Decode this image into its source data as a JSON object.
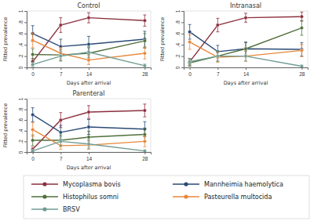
{
  "chart_data": [
    {
      "type": "line",
      "title": "Control",
      "x_label": "Days after arrival",
      "y_label": "Fitted prevalence",
      "x": [
        0,
        7,
        14,
        28
      ],
      "xlim": [
        -1.5,
        29.5
      ],
      "xticks": [
        0,
        7,
        14,
        28
      ],
      "ylim": [
        0,
        1
      ],
      "yticks": [
        0,
        {
          "value": 0.2,
          "label": ".2"
        },
        {
          "value": 0.4,
          "label": ".4"
        },
        {
          "value": 0.6,
          "label": ".6"
        },
        {
          "value": 0.8,
          "label": ".8"
        },
        1
      ],
      "legend": "bottom",
      "series": [
        {
          "name": "Mycoplasma bovis",
          "color": "#8b2f3c",
          "marker": "circle",
          "values": [
            0.1,
            0.75,
            0.88,
            0.83
          ],
          "errors": [
            0.06,
            0.13,
            0.09,
            0.1
          ]
        },
        {
          "name": "Mannheimia haemolytica",
          "color": "#2a4a75",
          "marker": "circle",
          "values": [
            0.6,
            0.37,
            0.41,
            0.5
          ],
          "errors": [
            0.14,
            0.13,
            0.14,
            0.14
          ]
        },
        {
          "name": "Histophilus somni",
          "color": "#50703c",
          "marker": "circle",
          "values": [
            0.23,
            0.22,
            0.25,
            0.47
          ],
          "errors": [
            0.1,
            0.1,
            0.1,
            0.13
          ]
        },
        {
          "name": "Pasteurella multocida",
          "color": "#e8873a",
          "marker": "circle",
          "values": [
            0.48,
            0.25,
            0.13,
            0.25
          ],
          "errors": [
            0.13,
            0.1,
            0.08,
            0.1
          ]
        },
        {
          "name": "BRSV",
          "color": "#6f9c92",
          "marker": "circle",
          "values": [
            0.05,
            0.2,
            0.27,
            0.03
          ],
          "errors": [
            0.04,
            0.09,
            0.1,
            0.03
          ]
        }
      ]
    },
    {
      "type": "line",
      "title": "Intranasal",
      "x_label": "Days after arrival",
      "y_label": "Fitted prevalence",
      "x": [
        0,
        7,
        14,
        28
      ],
      "xlim": [
        -1.5,
        29.5
      ],
      "xticks": [
        0,
        7,
        14,
        28
      ],
      "ylim": [
        0,
        1
      ],
      "yticks": [
        0,
        {
          "value": 0.2,
          "label": ".2"
        },
        {
          "value": 0.4,
          "label": ".4"
        },
        {
          "value": 0.6,
          "label": ".6"
        },
        {
          "value": 0.8,
          "label": ".8"
        },
        1
      ],
      "legend": "bottom",
      "series": [
        {
          "name": "Mycoplasma bovis",
          "color": "#8b2f3c",
          "marker": "circle",
          "values": [
            0.1,
            0.75,
            0.88,
            0.9
          ],
          "errors": [
            0.06,
            0.12,
            0.08,
            0.08
          ]
        },
        {
          "name": "Mannheimia haemolytica",
          "color": "#2a4a75",
          "marker": "circle",
          "values": [
            0.63,
            0.28,
            0.33,
            0.32
          ],
          "errors": [
            0.13,
            0.11,
            0.12,
            0.12
          ]
        },
        {
          "name": "Histophilus somni",
          "color": "#50703c",
          "marker": "circle",
          "values": [
            0.08,
            0.2,
            0.33,
            0.7
          ],
          "errors": [
            0.06,
            0.09,
            0.11,
            0.13
          ]
        },
        {
          "name": "Pasteurella multocida",
          "color": "#e8873a",
          "marker": "circle",
          "values": [
            0.45,
            0.18,
            0.2,
            0.3
          ],
          "errors": [
            0.13,
            0.09,
            0.09,
            0.11
          ]
        },
        {
          "name": "BRSV",
          "color": "#6f9c92",
          "marker": "circle",
          "values": [
            0.1,
            0.2,
            0.2,
            0.02
          ],
          "errors": [
            0.06,
            0.09,
            0.09,
            0.02
          ]
        }
      ]
    },
    {
      "type": "line",
      "title": "Parenteral",
      "x_label": "Days after arrival",
      "y_label": "Fitted prevalence",
      "x": [
        0,
        7,
        14,
        28
      ],
      "xlim": [
        -1.5,
        29.5
      ],
      "xticks": [
        0,
        7,
        14,
        28
      ],
      "ylim": [
        0,
        1
      ],
      "yticks": [
        0,
        {
          "value": 0.2,
          "label": ".2"
        },
        {
          "value": 0.4,
          "label": ".4"
        },
        {
          "value": 0.6,
          "label": ".6"
        },
        {
          "value": 0.8,
          "label": ".8"
        },
        1
      ],
      "legend": "bottom",
      "series": [
        {
          "name": "Mycoplasma bovis",
          "color": "#8b2f3c",
          "marker": "circle",
          "values": [
            0.05,
            0.6,
            0.75,
            0.78
          ],
          "errors": [
            0.04,
            0.14,
            0.12,
            0.12
          ]
        },
        {
          "name": "Mannheimia haemolytica",
          "color": "#2a4a75",
          "marker": "circle",
          "values": [
            0.7,
            0.37,
            0.47,
            0.43
          ],
          "errors": [
            0.13,
            0.13,
            0.14,
            0.14
          ]
        },
        {
          "name": "Histophilus somni",
          "color": "#50703c",
          "marker": "circle",
          "values": [
            0.22,
            0.22,
            0.28,
            0.33
          ],
          "errors": [
            0.1,
            0.1,
            0.11,
            0.12
          ]
        },
        {
          "name": "Pasteurella multocida",
          "color": "#e8873a",
          "marker": "circle",
          "values": [
            0.42,
            0.12,
            0.13,
            0.2
          ],
          "errors": [
            0.13,
            0.07,
            0.08,
            0.1
          ]
        },
        {
          "name": "BRSV",
          "color": "#6f9c92",
          "marker": "circle",
          "values": [
            0.02,
            0.2,
            0.15,
            0.02
          ],
          "errors": [
            0.02,
            0.09,
            0.08,
            0.02
          ]
        }
      ]
    }
  ]
}
